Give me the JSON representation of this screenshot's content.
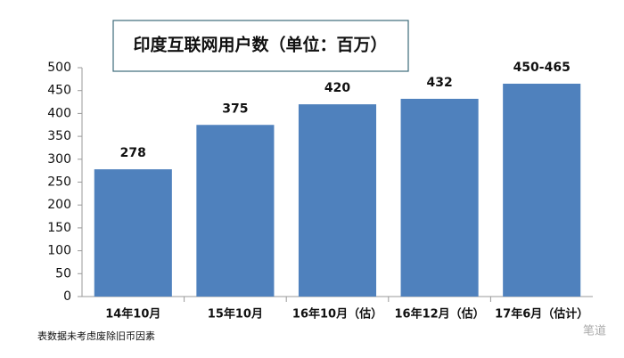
{
  "chart_data": {
    "type": "bar",
    "title": "印度互联网用户数（单位：百万）",
    "categories": [
      "14年10月",
      "15年10月",
      "16年10月（估）",
      "16年12月（估）",
      "17年6月（估计）"
    ],
    "values": [
      278,
      375,
      420,
      432,
      465
    ],
    "value_labels": [
      "278",
      "375",
      "420",
      "432",
      "450-465"
    ],
    "color": "#4f81bd",
    "ylim": [
      0,
      500
    ],
    "yticks": [
      0,
      50,
      100,
      150,
      200,
      250,
      300,
      350,
      400,
      450,
      500
    ],
    "grid": false,
    "note": "表数据未考虑废除旧币因素",
    "watermark": "笔道"
  }
}
